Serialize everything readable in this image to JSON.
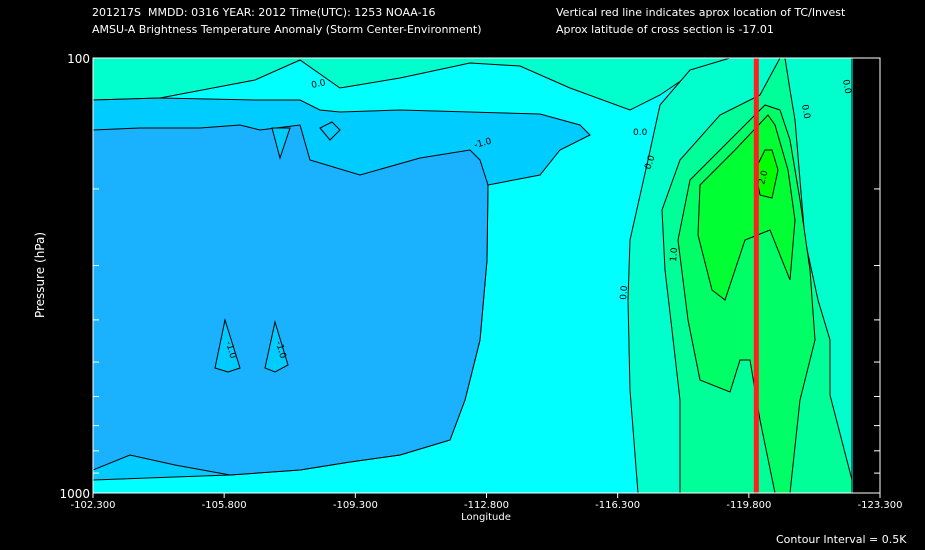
{
  "header": {
    "line1": "201217S  MMDD: 0316 YEAR: 2012 Time(UTC): 1253 NOAA-16",
    "line2": "AMSU-A Brightness Temperature Anomaly (Storm Center-Environment)",
    "line3": "Vertical red line indicates aprox location of TC/Invest",
    "line4": "Aprox latitude of cross section is -17.01"
  },
  "footer": {
    "contour_interval": "Contour Interval = 0.5K"
  },
  "colors": {
    "background": "#000000",
    "level_neg15": "#1ab2ff",
    "level_neg10": "#00ccff",
    "level_neg05": "#00ffff",
    "level_00": "#00ffcc",
    "level_05": "#00ff99",
    "level_10": "#00ff66",
    "level_15": "#00ff33",
    "level_20": "#00ff00",
    "tc_line": "#ff2020"
  },
  "chart_data": {
    "type": "contour",
    "xlabel": "Longitude",
    "ylabel": "Pressure (hPa)",
    "xlim": [
      -102.3,
      -123.3
    ],
    "ylim": [
      1000,
      100
    ],
    "y_scale": "log",
    "x_ticks": [
      "-102.300",
      "-105.800",
      "-109.300",
      "-112.800",
      "-116.300",
      "-119.800",
      "-123.300"
    ],
    "x_tick_values": [
      -102.3,
      -105.8,
      -109.3,
      -112.8,
      -116.3,
      -119.8,
      -123.3
    ],
    "y_ticks": [
      "100",
      "1000"
    ],
    "y_tick_values": [
      100,
      1000
    ],
    "y_minor_ticks": [
      200,
      300,
      400,
      500,
      600,
      700,
      800,
      900
    ],
    "tc_longitude": -120.0,
    "contour_interval": 0.5,
    "contour_labels": [
      "0.0",
      "0.0",
      "0.0",
      "0.0",
      "0.0",
      "0.0",
      "-1.0",
      "-1.0",
      "-1.0",
      "1.0",
      "2.0"
    ],
    "grid": false
  }
}
